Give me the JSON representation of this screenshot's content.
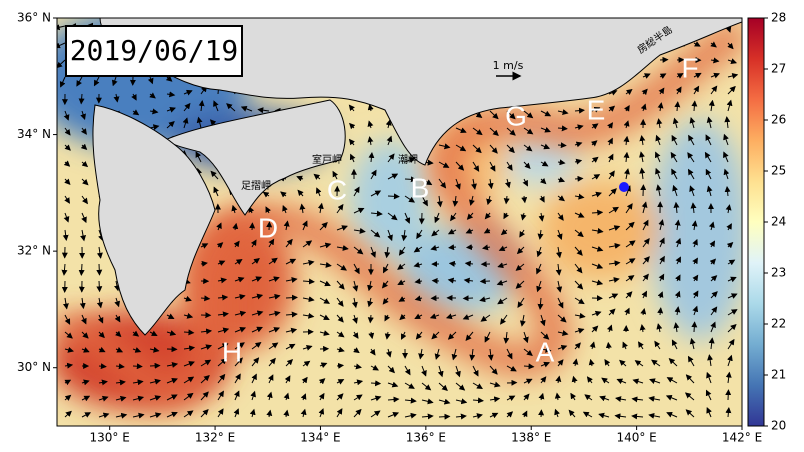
{
  "date": "2019/06/19",
  "scale_label": "1 m/s",
  "map_labels": [
    "A",
    "B",
    "C",
    "D",
    "E",
    "F",
    "G",
    "H"
  ],
  "place_names": [
    "室戸岬",
    "潮岬",
    "足摺岬",
    "房総半島"
  ],
  "lat_ticks": [
    {
      "value": 30,
      "label": "30° N"
    },
    {
      "value": 32,
      "label": "32° N"
    },
    {
      "value": 34,
      "label": "34° N"
    },
    {
      "value": 36,
      "label": "36° N"
    }
  ],
  "lon_ticks": [
    {
      "value": 130,
      "label": "130° E"
    },
    {
      "value": 132,
      "label": "132° E"
    },
    {
      "value": 134,
      "label": "134° E"
    },
    {
      "value": 136,
      "label": "136° E"
    },
    {
      "value": 138,
      "label": "138° E"
    },
    {
      "value": 140,
      "label": "140° E"
    },
    {
      "value": 142,
      "label": "142° E"
    }
  ],
  "colorbar": {
    "range": [
      20,
      28
    ],
    "ticks": [
      20,
      21,
      22,
      23,
      24,
      25,
      26,
      27,
      28
    ]
  }
}
